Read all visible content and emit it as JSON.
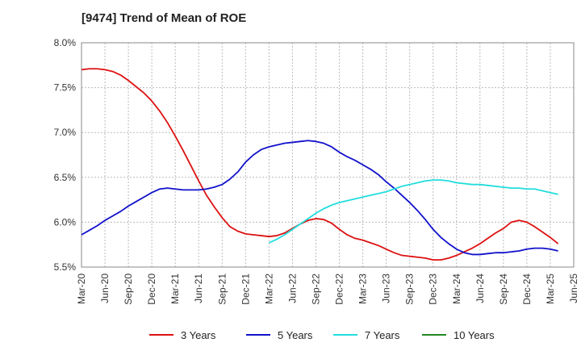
{
  "chart_data": {
    "type": "line",
    "title": "[9474]  Trend of Mean of ROE",
    "xlabel": "",
    "ylabel": "",
    "x_ticks": [
      "Mar-20",
      "Jun-20",
      "Sep-20",
      "Dec-20",
      "Mar-21",
      "Jun-21",
      "Sep-21",
      "Dec-21",
      "Mar-22",
      "Jun-22",
      "Sep-22",
      "Dec-22",
      "Mar-23",
      "Jun-23",
      "Sep-23",
      "Dec-23",
      "Mar-24",
      "Jun-24",
      "Sep-24",
      "Dec-24",
      "Mar-25",
      "Jun-25"
    ],
    "y_ticks": [
      "5.5%",
      "6.0%",
      "6.5%",
      "7.0%",
      "7.5%",
      "8.0%"
    ],
    "ylim": [
      5.5,
      8.0
    ],
    "grid": true,
    "legend_position": "bottom",
    "series": [
      {
        "name": "3 Years",
        "color": "#dd1111",
        "points": [
          [
            "Mar-20",
            7.7
          ],
          [
            "Apr-20",
            7.71
          ],
          [
            "May-20",
            7.71
          ],
          [
            "Jun-20",
            7.7
          ],
          [
            "Jul-20",
            7.68
          ],
          [
            "Aug-20",
            7.64
          ],
          [
            "Sep-20",
            7.58
          ],
          [
            "Oct-20",
            7.51
          ],
          [
            "Nov-20",
            7.44
          ],
          [
            "Dec-20",
            7.35
          ],
          [
            "Jan-21",
            7.24
          ],
          [
            "Feb-21",
            7.11
          ],
          [
            "Mar-21",
            6.96
          ],
          [
            "Apr-21",
            6.8
          ],
          [
            "May-21",
            6.63
          ],
          [
            "Jun-21",
            6.46
          ],
          [
            "Jul-21",
            6.3
          ],
          [
            "Aug-21",
            6.17
          ],
          [
            "Sep-21",
            6.05
          ],
          [
            "Oct-21",
            5.95
          ],
          [
            "Nov-21",
            5.9
          ],
          [
            "Dec-21",
            5.87
          ],
          [
            "Jan-22",
            5.86
          ],
          [
            "Feb-22",
            5.85
          ],
          [
            "Mar-22",
            5.84
          ],
          [
            "Apr-22",
            5.85
          ],
          [
            "May-22",
            5.88
          ],
          [
            "Jun-22",
            5.93
          ],
          [
            "Jul-22",
            5.98
          ],
          [
            "Aug-22",
            6.02
          ],
          [
            "Sep-22",
            6.04
          ],
          [
            "Oct-22",
            6.03
          ],
          [
            "Nov-22",
            5.99
          ],
          [
            "Dec-22",
            5.92
          ],
          [
            "Jan-23",
            5.86
          ],
          [
            "Feb-23",
            5.82
          ],
          [
            "Mar-23",
            5.8
          ],
          [
            "Apr-23",
            5.77
          ],
          [
            "May-23",
            5.74
          ],
          [
            "Jun-23",
            5.7
          ],
          [
            "Jul-23",
            5.66
          ],
          [
            "Aug-23",
            5.63
          ],
          [
            "Sep-23",
            5.62
          ],
          [
            "Oct-23",
            5.61
          ],
          [
            "Nov-23",
            5.6
          ],
          [
            "Dec-23",
            5.58
          ],
          [
            "Jan-24",
            5.58
          ],
          [
            "Feb-24",
            5.6
          ],
          [
            "Mar-24",
            5.63
          ],
          [
            "Apr-24",
            5.67
          ],
          [
            "May-24",
            5.71
          ],
          [
            "Jun-24",
            5.76
          ],
          [
            "Jul-24",
            5.82
          ],
          [
            "Aug-24",
            5.88
          ],
          [
            "Sep-24",
            5.93
          ],
          [
            "Oct-24",
            6.0
          ],
          [
            "Nov-24",
            6.02
          ],
          [
            "Dec-24",
            6.0
          ],
          [
            "Jan-25",
            5.95
          ],
          [
            "Feb-25",
            5.89
          ],
          [
            "Mar-25",
            5.83
          ],
          [
            "Apr-25",
            5.76
          ]
        ]
      },
      {
        "name": "5 Years",
        "color": "#1111cc",
        "points": [
          [
            "Mar-20",
            5.86
          ],
          [
            "Apr-20",
            5.91
          ],
          [
            "May-20",
            5.96
          ],
          [
            "Jun-20",
            6.02
          ],
          [
            "Jul-20",
            6.07
          ],
          [
            "Aug-20",
            6.12
          ],
          [
            "Sep-20",
            6.18
          ],
          [
            "Oct-20",
            6.23
          ],
          [
            "Nov-20",
            6.28
          ],
          [
            "Dec-20",
            6.33
          ],
          [
            "Jan-21",
            6.37
          ],
          [
            "Feb-21",
            6.38
          ],
          [
            "Mar-21",
            6.37
          ],
          [
            "Apr-21",
            6.36
          ],
          [
            "May-21",
            6.36
          ],
          [
            "Jun-21",
            6.36
          ],
          [
            "Jul-21",
            6.37
          ],
          [
            "Aug-21",
            6.39
          ],
          [
            "Sep-21",
            6.42
          ],
          [
            "Oct-21",
            6.48
          ],
          [
            "Nov-21",
            6.56
          ],
          [
            "Dec-21",
            6.67
          ],
          [
            "Jan-22",
            6.75
          ],
          [
            "Feb-22",
            6.81
          ],
          [
            "Mar-22",
            6.84
          ],
          [
            "Apr-22",
            6.86
          ],
          [
            "May-22",
            6.88
          ],
          [
            "Jun-22",
            6.89
          ],
          [
            "Jul-22",
            6.9
          ],
          [
            "Aug-22",
            6.91
          ],
          [
            "Sep-22",
            6.9
          ],
          [
            "Oct-22",
            6.88
          ],
          [
            "Nov-22",
            6.84
          ],
          [
            "Dec-22",
            6.78
          ],
          [
            "Jan-23",
            6.73
          ],
          [
            "Feb-23",
            6.69
          ],
          [
            "Mar-23",
            6.64
          ],
          [
            "Apr-23",
            6.59
          ],
          [
            "May-23",
            6.53
          ],
          [
            "Jun-23",
            6.45
          ],
          [
            "Jul-23",
            6.38
          ],
          [
            "Aug-23",
            6.3
          ],
          [
            "Sep-23",
            6.22
          ],
          [
            "Oct-23",
            6.13
          ],
          [
            "Nov-23",
            6.03
          ],
          [
            "Dec-23",
            5.92
          ],
          [
            "Jan-24",
            5.83
          ],
          [
            "Feb-24",
            5.76
          ],
          [
            "Mar-24",
            5.7
          ],
          [
            "Apr-24",
            5.66
          ],
          [
            "May-24",
            5.64
          ],
          [
            "Jun-24",
            5.64
          ],
          [
            "Jul-24",
            5.65
          ],
          [
            "Aug-24",
            5.66
          ],
          [
            "Sep-24",
            5.66
          ],
          [
            "Oct-24",
            5.67
          ],
          [
            "Nov-24",
            5.68
          ],
          [
            "Dec-24",
            5.7
          ],
          [
            "Jan-25",
            5.71
          ],
          [
            "Feb-25",
            5.71
          ],
          [
            "Mar-25",
            5.7
          ],
          [
            "Apr-25",
            5.68
          ]
        ]
      },
      {
        "name": "7 Years",
        "color": "#22dddd",
        "points": [
          [
            "Mar-22",
            5.77
          ],
          [
            "Apr-22",
            5.81
          ],
          [
            "May-22",
            5.86
          ],
          [
            "Jun-22",
            5.92
          ],
          [
            "Jul-22",
            5.98
          ],
          [
            "Aug-22",
            6.04
          ],
          [
            "Sep-22",
            6.1
          ],
          [
            "Oct-22",
            6.15
          ],
          [
            "Nov-22",
            6.19
          ],
          [
            "Dec-22",
            6.22
          ],
          [
            "Jan-23",
            6.24
          ],
          [
            "Feb-23",
            6.26
          ],
          [
            "Mar-23",
            6.28
          ],
          [
            "Apr-23",
            6.3
          ],
          [
            "May-23",
            6.32
          ],
          [
            "Jun-23",
            6.34
          ],
          [
            "Jul-23",
            6.37
          ],
          [
            "Aug-23",
            6.4
          ],
          [
            "Sep-23",
            6.42
          ],
          [
            "Oct-23",
            6.44
          ],
          [
            "Nov-23",
            6.46
          ],
          [
            "Dec-23",
            6.47
          ],
          [
            "Jan-24",
            6.47
          ],
          [
            "Feb-24",
            6.46
          ],
          [
            "Mar-24",
            6.44
          ],
          [
            "Apr-24",
            6.43
          ],
          [
            "May-24",
            6.42
          ],
          [
            "Jun-24",
            6.42
          ],
          [
            "Jul-24",
            6.41
          ],
          [
            "Aug-24",
            6.4
          ],
          [
            "Sep-24",
            6.39
          ],
          [
            "Oct-24",
            6.38
          ],
          [
            "Nov-24",
            6.38
          ],
          [
            "Dec-24",
            6.37
          ],
          [
            "Jan-25",
            6.37
          ],
          [
            "Feb-25",
            6.35
          ],
          [
            "Mar-25",
            6.33
          ],
          [
            "Apr-25",
            6.31
          ]
        ]
      },
      {
        "name": "10 Years",
        "color": "#228822",
        "points": []
      }
    ]
  }
}
